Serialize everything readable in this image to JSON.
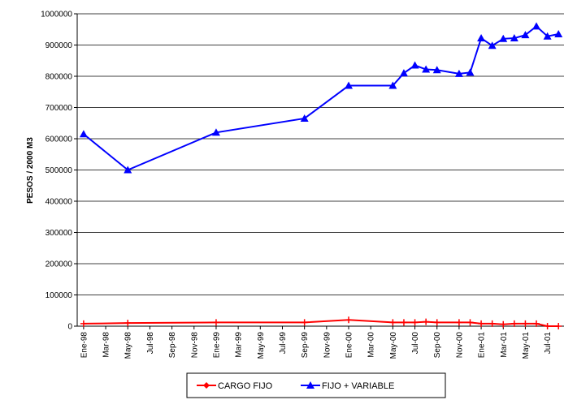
{
  "chart_data": {
    "type": "line",
    "y_label": "PESOS / 2000 M3",
    "x": [
      "1998-01",
      "1998-05",
      "1999-01",
      "1999-09",
      "2000-01",
      "2000-05",
      "2000-06",
      "2000-07",
      "2000-08",
      "2000-09",
      "2000-11",
      "2000-12",
      "2001-01",
      "2001-02",
      "2001-03",
      "2001-04",
      "2001-05",
      "2001-06",
      "2001-07",
      "2001-08"
    ],
    "series": [
      {
        "name": "CARGO FIJO",
        "color": "#ff0000",
        "values": [
          8000,
          10000,
          12000,
          12000,
          20000,
          12000,
          12000,
          12000,
          14000,
          12000,
          12000,
          12000,
          8000,
          8000,
          6000,
          8000,
          8000,
          8000,
          0,
          0
        ]
      },
      {
        "name": "FIJO + VARIABLE",
        "color": "#0000ff",
        "values": [
          615000,
          500000,
          620000,
          665000,
          770000,
          770000,
          810000,
          835000,
          822000,
          820000,
          808000,
          812000,
          922000,
          898000,
          920000,
          922000,
          932000,
          960000,
          928000,
          935000
        ]
      }
    ],
    "xlim": [
      "1997-12",
      "2001-08"
    ],
    "xticks": [
      {
        "value": "1998-01",
        "label": "Ene-98"
      },
      {
        "value": "1998-03",
        "label": "Mar-98"
      },
      {
        "value": "1998-05",
        "label": "May-98"
      },
      {
        "value": "1998-07",
        "label": "Jul-98"
      },
      {
        "value": "1998-09",
        "label": "Sep-98"
      },
      {
        "value": "1998-11",
        "label": "Nov-98"
      },
      {
        "value": "1999-01",
        "label": "Ene-99"
      },
      {
        "value": "1999-03",
        "label": "Mar-99"
      },
      {
        "value": "1999-05",
        "label": "May-99"
      },
      {
        "value": "1999-07",
        "label": "Jul-99"
      },
      {
        "value": "1999-09",
        "label": "Sep-99"
      },
      {
        "value": "1999-11",
        "label": "Nov-99"
      },
      {
        "value": "2000-01",
        "label": "Ene-00"
      },
      {
        "value": "2000-03",
        "label": "Mar-00"
      },
      {
        "value": "2000-05",
        "label": "May-00"
      },
      {
        "value": "2000-07",
        "label": "Jul-00"
      },
      {
        "value": "2000-09",
        "label": "Sep-00"
      },
      {
        "value": "2000-11",
        "label": "Nov-00"
      },
      {
        "value": "2001-01",
        "label": "Ene-01"
      },
      {
        "value": "2001-03",
        "label": "Mar-01"
      },
      {
        "value": "2001-05",
        "label": "May-01"
      },
      {
        "value": "2001-07",
        "label": "Jul-01"
      }
    ],
    "ylim": [
      0,
      1000000
    ],
    "yticks": [
      0,
      100000,
      200000,
      300000,
      400000,
      500000,
      600000,
      700000,
      800000,
      900000,
      1000000
    ],
    "grid": true,
    "legend": "bottom"
  }
}
